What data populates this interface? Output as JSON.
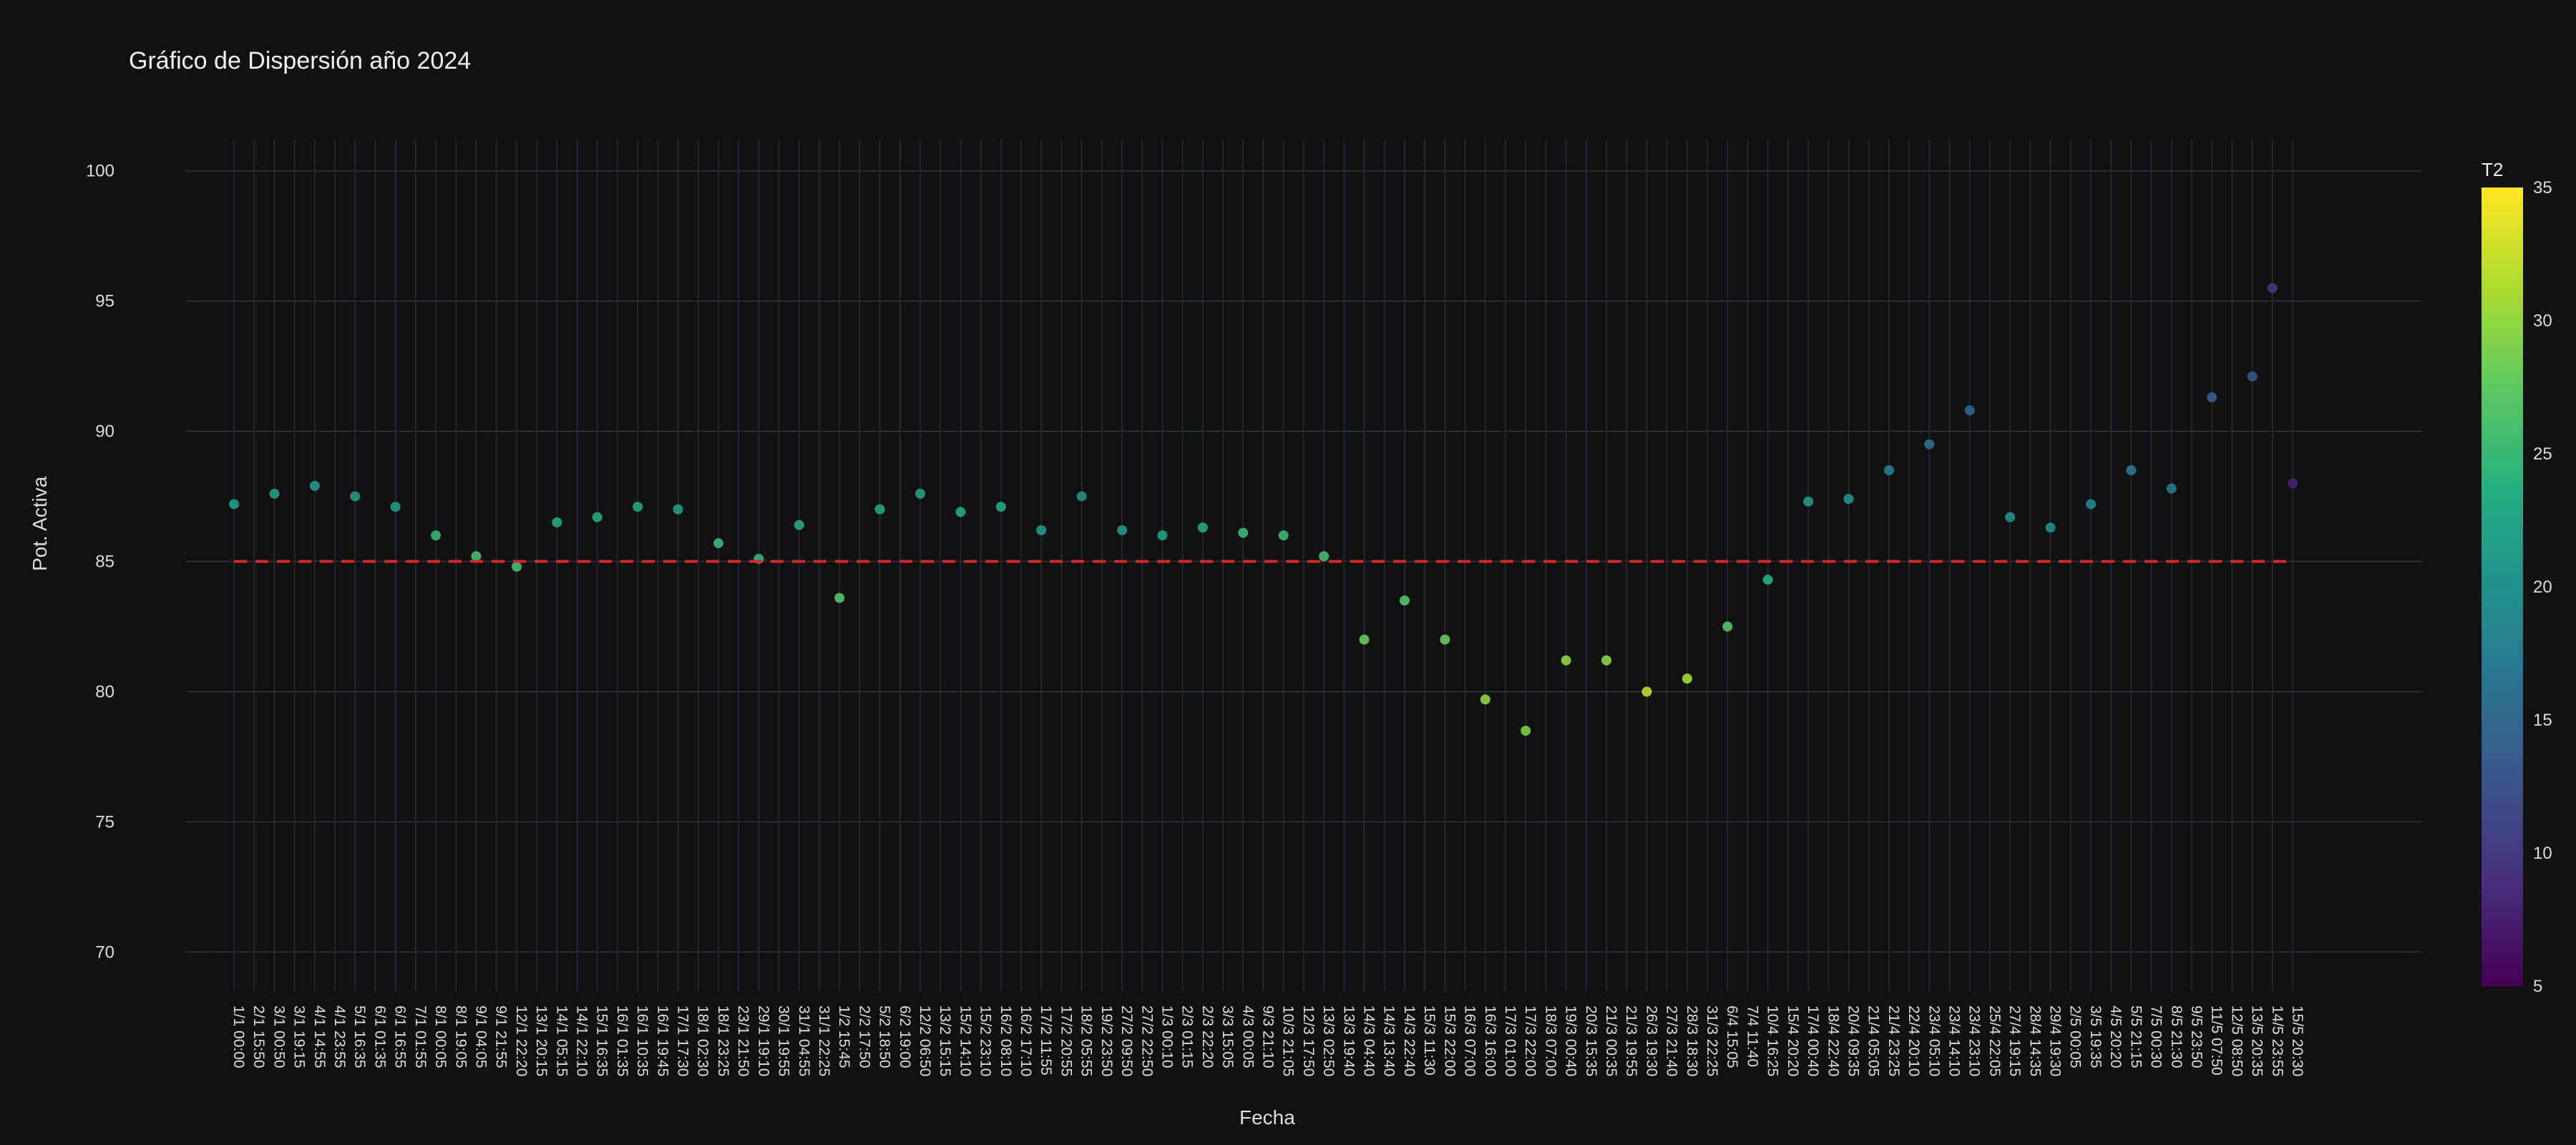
{
  "chart_data": {
    "type": "scatter",
    "title": "Gráfico de Dispersión año 2024",
    "xlabel": "Fecha",
    "ylabel": "Pot. Activa",
    "ylim": [
      68.5,
      101.2
    ],
    "yticks": [
      70,
      75,
      80,
      85,
      90,
      95,
      100
    ],
    "grid": true,
    "x_tick_labels": [
      "1/1 00:00",
      "2/1 15:50",
      "3/1 00:50",
      "3/1 19:15",
      "4/1 14:55",
      "4/1 23:55",
      "5/1 16:35",
      "6/1 01:35",
      "6/1 16:55",
      "7/1 01:55",
      "8/1 00:05",
      "8/1 19:05",
      "9/1 04:05",
      "9/1 21:55",
      "12/1 22:20",
      "13/1 20:15",
      "14/1 05:15",
      "14/1 22:10",
      "15/1 16:35",
      "16/1 01:35",
      "16/1 10:35",
      "16/1 19:45",
      "17/1 17:30",
      "18/1 02:30",
      "18/1 23:25",
      "23/1 21:50",
      "29/1 19:10",
      "30/1 19:55",
      "31/1 04:55",
      "31/1 22:25",
      "1/2 15:45",
      "2/2 17:50",
      "5/2 18:50",
      "6/2 19:00",
      "12/2 06:50",
      "13/2 15:15",
      "15/2 14:10",
      "15/2 23:10",
      "16/2 08:10",
      "16/2 17:10",
      "17/2 11:55",
      "17/2 20:55",
      "18/2 05:55",
      "19/2 23:50",
      "27/2 09:50",
      "27/2 22:50",
      "1/3 00:10",
      "2/3 01:15",
      "2/3 22:20",
      "3/3 15:05",
      "4/3 00:05",
      "9/3 21:10",
      "10/3 21:05",
      "12/3 17:50",
      "13/3 02:50",
      "13/3 19:40",
      "14/3 04:40",
      "14/3 13:40",
      "14/3 22:40",
      "15/3 11:30",
      "15/3 22:00",
      "16/3 07:00",
      "16/3 16:00",
      "17/3 01:00",
      "17/3 22:00",
      "18/3 07:00",
      "19/3 00:40",
      "20/3 15:35",
      "21/3 00:35",
      "21/3 19:55",
      "26/3 19:30",
      "27/3 21:40",
      "28/3 18:30",
      "31/3 22:25",
      "6/4 15:05",
      "7/4 11:40",
      "10/4 16:25",
      "15/4 20:20",
      "17/4 00:40",
      "18/4 22:40",
      "20/4 09:35",
      "21/4 05:05",
      "21/4 23:25",
      "22/4 20:10",
      "23/4 05:10",
      "23/4 14:10",
      "23/4 23:10",
      "25/4 22:05",
      "27/4 19:15",
      "28/4 14:35",
      "29/4 19:30",
      "2/5 00:05",
      "3/5 19:35",
      "4/5 20:20",
      "5/5 21:15",
      "7/5 00:30",
      "8/5 21:30",
      "9/5 23:50",
      "11/5 07:50",
      "12/5 08:50",
      "13/5 20:35",
      "14/5 23:55",
      "15/5 20:30"
    ],
    "reference_line": {
      "y": 85,
      "style": "dashed",
      "color": "#d62728"
    },
    "colorbar": {
      "title": "T2",
      "min": 5,
      "max": 35,
      "ticks": [
        5,
        10,
        15,
        20,
        25,
        30,
        35
      ],
      "colorscale": "viridis"
    },
    "series": [
      {
        "x_index": [
          0,
          2,
          4,
          6,
          8,
          10,
          12,
          14,
          16,
          18,
          20,
          22,
          24,
          26,
          28,
          30,
          32,
          34,
          36,
          38,
          40,
          42,
          44,
          46,
          48,
          50,
          52,
          54,
          56,
          58,
          60,
          62,
          64,
          66,
          68,
          70,
          72,
          74,
          76,
          78,
          80,
          82,
          84,
          86,
          88,
          90,
          92,
          94,
          96,
          98,
          100,
          101,
          102
        ],
        "y": [
          87.2,
          87.6,
          87.9,
          87.5,
          87.1,
          86.0,
          85.2,
          84.8,
          86.5,
          86.7,
          87.1,
          87.0,
          85.7,
          85.1,
          86.4,
          83.6,
          87.0,
          87.6,
          86.9,
          87.1,
          86.2,
          87.5,
          86.2,
          86.0,
          86.3,
          86.1,
          86.0,
          85.2,
          82.0,
          83.5,
          82.0,
          79.7,
          78.5,
          81.2,
          81.2,
          80.0,
          80.5,
          82.5,
          84.3,
          87.3,
          87.4,
          88.5,
          89.5,
          90.8,
          86.7,
          86.3,
          87.2,
          88.5,
          87.8,
          91.3,
          92.1,
          95.5,
          88.0
        ],
        "t2": [
          22,
          22,
          21,
          21,
          21,
          25,
          26,
          26,
          23,
          23,
          23,
          22,
          25,
          25,
          23,
          27,
          23,
          22,
          23,
          23,
          21,
          20,
          21,
          22,
          23,
          25,
          25,
          26,
          28,
          27,
          28,
          30,
          29,
          30,
          30,
          32,
          31,
          27,
          24,
          21,
          20,
          18,
          16,
          15,
          20,
          20,
          19,
          17,
          17,
          14,
          13,
          10,
          8
        ]
      }
    ]
  }
}
